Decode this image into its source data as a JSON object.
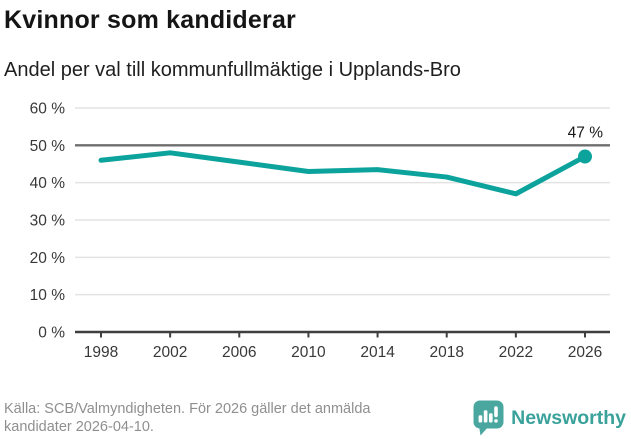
{
  "chart_data": {
    "type": "line",
    "title": "Kvinnor som kandiderar",
    "subtitle": "Andel per val till kommunfullmäktige i Upplands-Bro",
    "x": [
      1998,
      2002,
      2006,
      2010,
      2014,
      2018,
      2022,
      2026
    ],
    "xtick_labels": [
      "1998",
      "2002",
      "2006",
      "2010",
      "2014",
      "2018",
      "2022",
      "2026"
    ],
    "series": [
      {
        "values": [
          46,
          48,
          45.5,
          43,
          43.5,
          41.5,
          37,
          47
        ],
        "color": "#0ca39d"
      }
    ],
    "end_point": {
      "x": 2026,
      "value": 47,
      "label": "47 %"
    },
    "ylim": [
      0,
      60
    ],
    "ytick_step": 10,
    "ytick_labels": [
      "0 %",
      "10 %",
      "20 %",
      "30 %",
      "40 %",
      "50 %",
      "60 %"
    ],
    "reference_line": {
      "value": 50,
      "color": "#6e6e6e"
    },
    "grid": true,
    "legend": "none"
  },
  "colors": {
    "line": "#0ca39d",
    "reference_line": "#6e6e6e",
    "gridline": "#e3e3e3",
    "axis": "#3f3f3f",
    "brand_teal": "#3aa29b",
    "title_text": "#151515",
    "source_text": "#8f8f8f"
  },
  "footer": {
    "source_lines": [
      "Källa: SCB/Valmyndigheten. För 2026 gäller det anmälda",
      "kandidater 2026-04-10."
    ],
    "brand": "Newsworthy"
  }
}
